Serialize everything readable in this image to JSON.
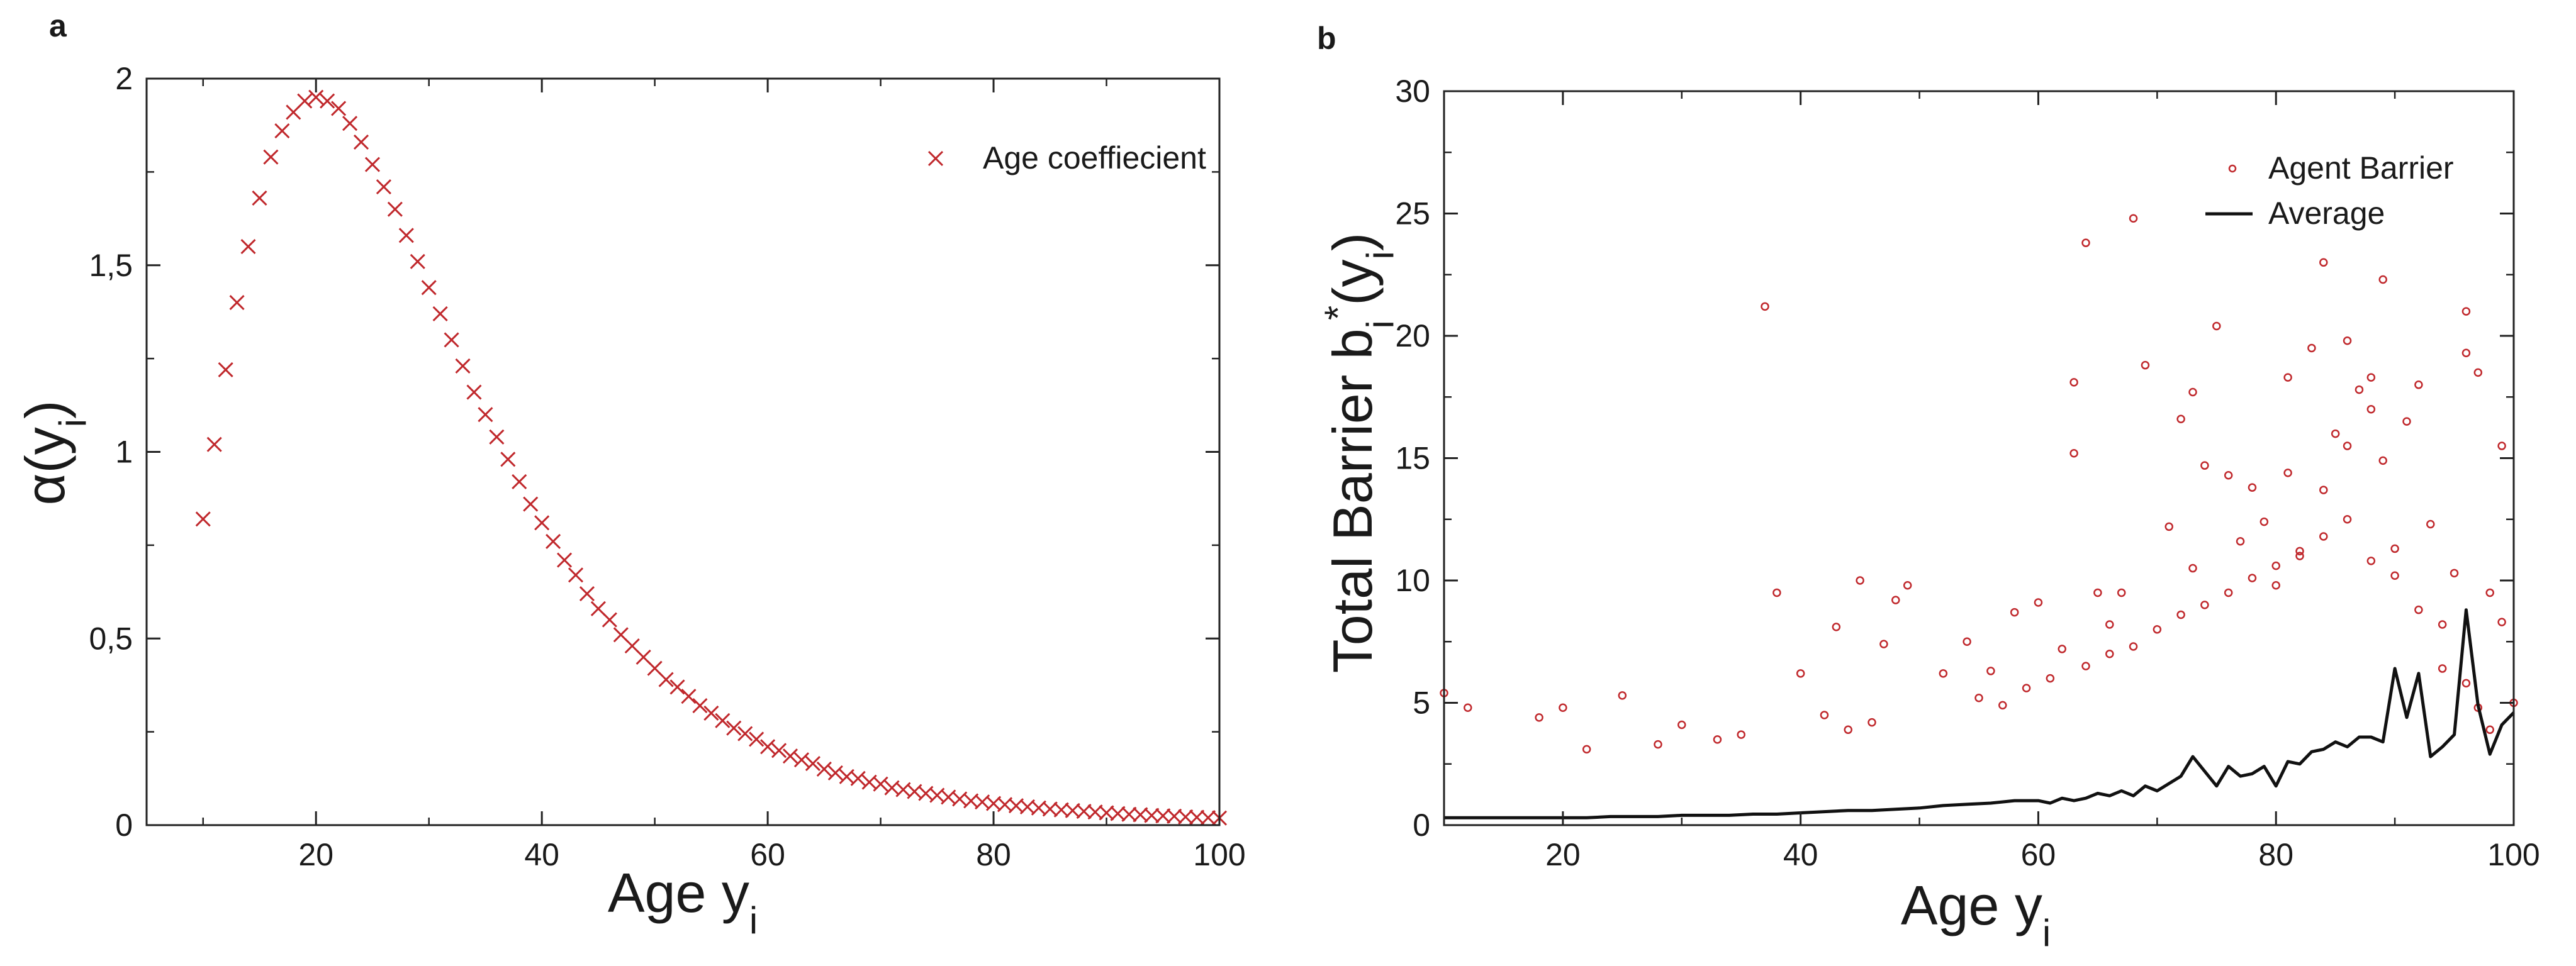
{
  "panels": [
    {
      "letter": "a"
    },
    {
      "letter": "b"
    }
  ],
  "colors": {
    "marker": "#c0282c",
    "average_line": "#111111",
    "axes": "#222222"
  },
  "chart_data": [
    {
      "type": "scatter",
      "title": "",
      "xlabel": "Age y",
      "xlabel_sub": "i",
      "ylabel": "α(y",
      "ylabel_sub": "i",
      "ylabel_close": ")",
      "xlim": [
        5,
        100
      ],
      "ylim": [
        0,
        2
      ],
      "xticks": [
        20,
        40,
        60,
        80,
        100
      ],
      "xtick_labels": [
        "20",
        "40",
        "60",
        "80",
        "100"
      ],
      "yticks": [
        0,
        0.5,
        1,
        1.5,
        2
      ],
      "ytick_labels": [
        "0",
        "0,5",
        "1",
        "1,5",
        "2"
      ],
      "grid": false,
      "legend_position": "top-right",
      "marker": "x",
      "series": [
        {
          "name": "Age coeffiecient",
          "x": [
            10,
            11,
            12,
            13,
            14,
            15,
            16,
            17,
            18,
            19,
            20,
            21,
            22,
            23,
            24,
            25,
            26,
            27,
            28,
            29,
            30,
            31,
            32,
            33,
            34,
            35,
            36,
            37,
            38,
            39,
            40,
            41,
            42,
            43,
            44,
            45,
            46,
            47,
            48,
            49,
            50,
            51,
            52,
            53,
            54,
            55,
            56,
            57,
            58,
            59,
            60,
            61,
            62,
            63,
            64,
            65,
            66,
            67,
            68,
            69,
            70,
            71,
            72,
            73,
            74,
            75,
            76,
            77,
            78,
            79,
            80,
            81,
            82,
            83,
            84,
            85,
            86,
            87,
            88,
            89,
            90,
            91,
            92,
            93,
            94,
            95,
            96,
            97,
            98,
            99,
            100
          ],
          "y": [
            0.82,
            1.02,
            1.22,
            1.4,
            1.55,
            1.68,
            1.79,
            1.86,
            1.91,
            1.94,
            1.95,
            1.94,
            1.92,
            1.88,
            1.83,
            1.77,
            1.71,
            1.65,
            1.58,
            1.51,
            1.44,
            1.37,
            1.3,
            1.23,
            1.16,
            1.1,
            1.04,
            0.98,
            0.92,
            0.86,
            0.81,
            0.76,
            0.71,
            0.67,
            0.62,
            0.58,
            0.55,
            0.51,
            0.48,
            0.45,
            0.42,
            0.39,
            0.37,
            0.345,
            0.32,
            0.3,
            0.28,
            0.26,
            0.245,
            0.23,
            0.21,
            0.2,
            0.185,
            0.175,
            0.165,
            0.15,
            0.14,
            0.13,
            0.125,
            0.115,
            0.11,
            0.1,
            0.095,
            0.09,
            0.085,
            0.08,
            0.075,
            0.07,
            0.065,
            0.062,
            0.058,
            0.055,
            0.052,
            0.049,
            0.046,
            0.043,
            0.041,
            0.039,
            0.037,
            0.035,
            0.033,
            0.031,
            0.029,
            0.028,
            0.026,
            0.025,
            0.024,
            0.022,
            0.021,
            0.02,
            0.019
          ]
        }
      ]
    },
    {
      "type": "scatter",
      "title": "",
      "xlabel": "Age y",
      "xlabel_sub": "i",
      "ylabel": "Total Barrier b",
      "ylabel_sub": "i",
      "ylabel_sup": "*",
      "ylabel_tail": "(y",
      "ylabel_tail_sub": "i",
      "ylabel_close": ")",
      "xlim": [
        10,
        100
      ],
      "ylim": [
        0,
        30
      ],
      "xticks": [
        20,
        40,
        60,
        80,
        100
      ],
      "xtick_labels": [
        "20",
        "40",
        "60",
        "80",
        "100"
      ],
      "yticks": [
        0,
        5,
        10,
        15,
        20,
        25,
        30
      ],
      "ytick_labels": [
        "0",
        "5",
        "10",
        "15",
        "20",
        "25",
        "30"
      ],
      "grid": false,
      "legend_position": "top-right",
      "series": [
        {
          "name": "Agent Barrier",
          "kind": "points",
          "marker": "circle",
          "points": [
            [
              10,
              5.4
            ],
            [
              12,
              4.8
            ],
            [
              18,
              4.4
            ],
            [
              20,
              4.8
            ],
            [
              25,
              5.3
            ],
            [
              30,
              4.1
            ],
            [
              37,
              21.2
            ],
            [
              38,
              9.5
            ],
            [
              40,
              6.2
            ],
            [
              43,
              8.1
            ],
            [
              45,
              10.0
            ],
            [
              47,
              7.4
            ],
            [
              48,
              9.2
            ],
            [
              49,
              9.8
            ],
            [
              52,
              6.2
            ],
            [
              54,
              7.5
            ],
            [
              56,
              6.3
            ],
            [
              58,
              8.7
            ],
            [
              60,
              9.1
            ],
            [
              62,
              7.2
            ],
            [
              63,
              15.2
            ],
            [
              63,
              18.1
            ],
            [
              64,
              23.8
            ],
            [
              65,
              9.5
            ],
            [
              66,
              8.2
            ],
            [
              67,
              9.5
            ],
            [
              68,
              24.8
            ],
            [
              69,
              18.8
            ],
            [
              71,
              12.2
            ],
            [
              72,
              16.6
            ],
            [
              73,
              17.7
            ],
            [
              73,
              10.5
            ],
            [
              74,
              14.7
            ],
            [
              75,
              20.4
            ],
            [
              76,
              14.3
            ],
            [
              77,
              11.6
            ],
            [
              78,
              13.8
            ],
            [
              79,
              12.4
            ],
            [
              80,
              9.8
            ],
            [
              81,
              18.3
            ],
            [
              81,
              14.4
            ],
            [
              82,
              11.2
            ],
            [
              83,
              19.5
            ],
            [
              84,
              23.0
            ],
            [
              84,
              13.7
            ],
            [
              85,
              16.0
            ],
            [
              86,
              15.5
            ],
            [
              86,
              19.8
            ],
            [
              87,
              17.8
            ],
            [
              88,
              18.3
            ],
            [
              88,
              17.0
            ],
            [
              89,
              22.3
            ],
            [
              89,
              14.9
            ],
            [
              90,
              10.2
            ],
            [
              91,
              16.5
            ],
            [
              92,
              18.0
            ],
            [
              93,
              12.3
            ],
            [
              94,
              8.2
            ],
            [
              95,
              10.3
            ],
            [
              96,
              21.0
            ],
            [
              96,
              19.3
            ],
            [
              97,
              18.5
            ],
            [
              98,
              9.5
            ],
            [
              99,
              15.5
            ],
            [
              99,
              8.3
            ],
            [
              100,
              5.0
            ],
            [
              97,
              4.8
            ],
            [
              55,
              5.2
            ],
            [
              57,
              4.9
            ],
            [
              59,
              5.6
            ],
            [
              61,
              6.0
            ],
            [
              64,
              6.5
            ],
            [
              66,
              7.0
            ],
            [
              68,
              7.3
            ],
            [
              70,
              8.0
            ],
            [
              72,
              8.6
            ],
            [
              74,
              9.0
            ],
            [
              76,
              9.5
            ],
            [
              78,
              10.1
            ],
            [
              80,
              10.6
            ],
            [
              82,
              11.0
            ],
            [
              84,
              11.8
            ],
            [
              86,
              12.5
            ],
            [
              88,
              10.8
            ],
            [
              90,
              11.3
            ],
            [
              92,
              8.8
            ],
            [
              94,
              6.4
            ],
            [
              96,
              5.8
            ],
            [
              98,
              3.9
            ],
            [
              42,
              4.5
            ],
            [
              44,
              3.9
            ],
            [
              46,
              4.2
            ],
            [
              35,
              3.7
            ],
            [
              33,
              3.5
            ],
            [
              28,
              3.3
            ],
            [
              22,
              3.1
            ]
          ]
        },
        {
          "name": "Average",
          "kind": "line",
          "x": [
            10,
            12,
            14,
            16,
            18,
            20,
            22,
            24,
            26,
            28,
            30,
            32,
            34,
            36,
            38,
            40,
            42,
            44,
            46,
            48,
            50,
            52,
            54,
            56,
            58,
            60,
            61,
            62,
            63,
            64,
            65,
            66,
            67,
            68,
            69,
            70,
            71,
            72,
            73,
            74,
            75,
            76,
            77,
            78,
            79,
            80,
            81,
            82,
            83,
            84,
            85,
            86,
            87,
            88,
            89,
            90,
            91,
            92,
            93,
            94,
            95,
            96,
            97,
            98,
            99,
            100
          ],
          "y": [
            0.3,
            0.3,
            0.3,
            0.3,
            0.3,
            0.3,
            0.3,
            0.35,
            0.35,
            0.35,
            0.4,
            0.4,
            0.4,
            0.45,
            0.45,
            0.5,
            0.55,
            0.6,
            0.6,
            0.65,
            0.7,
            0.8,
            0.85,
            0.9,
            1.0,
            1.0,
            0.9,
            1.1,
            1.0,
            1.1,
            1.3,
            1.2,
            1.4,
            1.2,
            1.6,
            1.4,
            1.7,
            2.0,
            2.8,
            2.2,
            1.6,
            2.4,
            2.0,
            2.1,
            2.4,
            1.6,
            2.6,
            2.5,
            3.0,
            3.1,
            3.4,
            3.2,
            3.6,
            3.6,
            3.4,
            6.4,
            4.4,
            6.2,
            2.8,
            3.2,
            3.7,
            8.8,
            4.9,
            2.9,
            4.1,
            4.6
          ]
        }
      ]
    }
  ]
}
